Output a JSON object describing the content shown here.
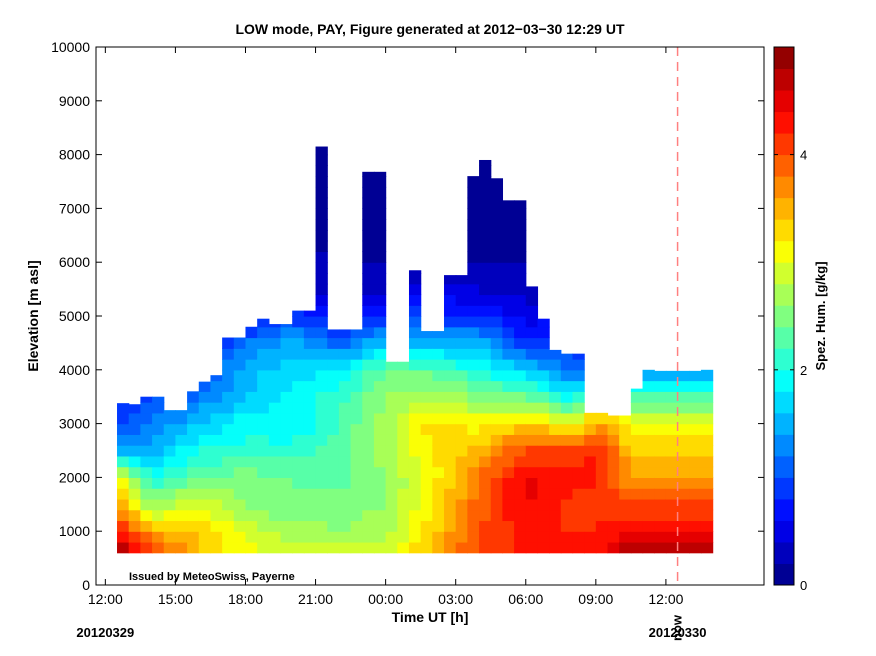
{
  "chart_data": {
    "type": "heatmap",
    "title": "LOW mode, PAY, Figure generated at 2012−03−30 12:29 UT",
    "xlabel": "Time UT [h]",
    "ylabel": "Elevation [m asl]",
    "xlim": [
      -0.4,
      28.2
    ],
    "ylim": [
      0,
      10000
    ],
    "x_ticks": [
      0,
      3,
      6,
      9,
      12,
      15,
      18,
      21,
      24
    ],
    "x_tick_labels": [
      "12:00",
      "15:00",
      "18:00",
      "21:00",
      "00:00",
      "03:00",
      "06:00",
      "09:00",
      "12:00"
    ],
    "y_ticks": [
      0,
      1000,
      2000,
      3000,
      4000,
      5000,
      6000,
      7000,
      8000,
      9000,
      10000
    ],
    "y_tick_labels": [
      "0",
      "1000",
      "2000",
      "3000",
      "4000",
      "5000",
      "6000",
      "7000",
      "8000",
      "9000",
      "10000"
    ],
    "date_labels": [
      {
        "x": 0,
        "text": "20120329"
      },
      {
        "x": 24.5,
        "text": "20120330"
      }
    ],
    "now_marker": {
      "x": 24.5,
      "label": "now",
      "color": "#ff8080"
    },
    "annotation": "Issued by MeteoSwiss, Payerne",
    "grid": false,
    "colorbar": {
      "label": "Spez. Hum. [g/kg]",
      "range": [
        0,
        5
      ],
      "ticks": [
        0,
        2,
        4
      ],
      "tick_labels": [
        "0",
        "2",
        "4"
      ],
      "colormap": "jet",
      "levels": 25
    },
    "column_width_h": 0.5,
    "data_start_h": 0.5,
    "ground_m": 600,
    "profile_tops_m": [
      3380,
      3360,
      3500,
      3500,
      3250,
      3250,
      3600,
      3780,
      3900,
      4600,
      4600,
      4800,
      4950,
      4850,
      4850,
      5100,
      5100,
      8150,
      4750,
      4750,
      4750,
      7680,
      7680,
      4150,
      4150,
      5850,
      4720,
      4720,
      5760,
      5760,
      7600,
      7900,
      7560,
      7150,
      7150,
      5550,
      4950,
      4370,
      4300,
      4300,
      3200,
      3200,
      3150,
      3150,
      3650,
      4000,
      3980,
      3980,
      3980,
      3980,
      4000
    ],
    "humidity_levels_m": [
      600,
      1000,
      1500,
      2000,
      2500,
      3000,
      3500,
      4000,
      4500,
      5000,
      5500,
      6000,
      7000,
      8000
    ],
    "humidity_keyframes": [
      {
        "t": 0.5,
        "q": [
          4.9,
          4.3,
          3.6,
          3.2,
          1.6,
          1.0,
          0.8,
          0.6,
          0.4,
          0.3,
          0.2,
          0.15,
          0.1,
          0.05
        ]
      },
      {
        "t": 2,
        "q": [
          4.2,
          3.5,
          2.6,
          2.0,
          1.5,
          1.2,
          1.0,
          0.7,
          0.4,
          0.3,
          0.2,
          0.15,
          0.1,
          0.05
        ]
      },
      {
        "t": 4,
        "q": [
          3.4,
          3.4,
          3.0,
          2.4,
          2.0,
          1.6,
          1.2,
          0.9,
          0.5,
          0.3,
          0.2,
          0.15,
          0.1,
          0.05
        ]
      },
      {
        "t": 6,
        "q": [
          3.1,
          2.9,
          2.6,
          2.5,
          2.1,
          1.9,
          1.6,
          1.5,
          1.2,
          0.6,
          0.3,
          0.2,
          0.1,
          0.05
        ]
      },
      {
        "t": 8,
        "q": [
          2.9,
          2.7,
          2.4,
          2.4,
          2.1,
          1.8,
          1.9,
          1.7,
          1.5,
          0.9,
          0.5,
          0.3,
          0.1,
          0.05
        ]
      },
      {
        "t": 10,
        "q": [
          2.9,
          2.6,
          2.5,
          2.3,
          2.3,
          2.2,
          2.1,
          1.8,
          1.1,
          0.6,
          0.3,
          0.2,
          0.1,
          0.05
        ]
      },
      {
        "t": 12,
        "q": [
          3.0,
          2.7,
          2.6,
          2.6,
          2.7,
          2.7,
          2.6,
          2.4,
          1.6,
          0.9,
          0.4,
          0.2,
          0.1,
          0.05
        ]
      },
      {
        "t": 14,
        "q": [
          3.5,
          3.3,
          3.2,
          3.1,
          3.2,
          3.3,
          2.8,
          2.3,
          1.5,
          0.9,
          0.5,
          0.2,
          0.1,
          0.05
        ]
      },
      {
        "t": 16,
        "q": [
          4.1,
          4.0,
          3.9,
          3.8,
          3.5,
          3.1,
          2.5,
          2.0,
          1.5,
          0.8,
          0.4,
          0.2,
          0.1,
          0.05
        ]
      },
      {
        "t": 18,
        "q": [
          4.2,
          4.3,
          4.4,
          4.5,
          4.0,
          3.4,
          2.4,
          1.6,
          0.9,
          0.5,
          0.3,
          0.2,
          0.1,
          0.05
        ]
      },
      {
        "t": 20,
        "q": [
          4.4,
          4.2,
          4.1,
          4.3,
          4.1,
          3.0,
          1.9,
          1.2,
          0.8,
          0.6,
          0.4,
          0.3,
          0.1,
          0.05
        ]
      },
      {
        "t": 21,
        "q": [
          4.3,
          4.2,
          4.1,
          4.3,
          4.2,
          3.6,
          2.7,
          1.0,
          0.6,
          0.4,
          0.3,
          0.2,
          0.1,
          0.05
        ]
      },
      {
        "t": 22.5,
        "q": [
          4.8,
          4.5,
          4.0,
          3.6,
          3.4,
          3.1,
          2.2,
          1.3,
          0.8,
          0.5,
          0.3,
          0.2,
          0.1,
          0.05
        ]
      },
      {
        "t": 23,
        "q": [
          4.8,
          4.4,
          4.0,
          3.6,
          3.3,
          3.1,
          2.2,
          1.4,
          0.8,
          0.5,
          0.3,
          0.2,
          0.1,
          0.05
        ]
      }
    ]
  }
}
